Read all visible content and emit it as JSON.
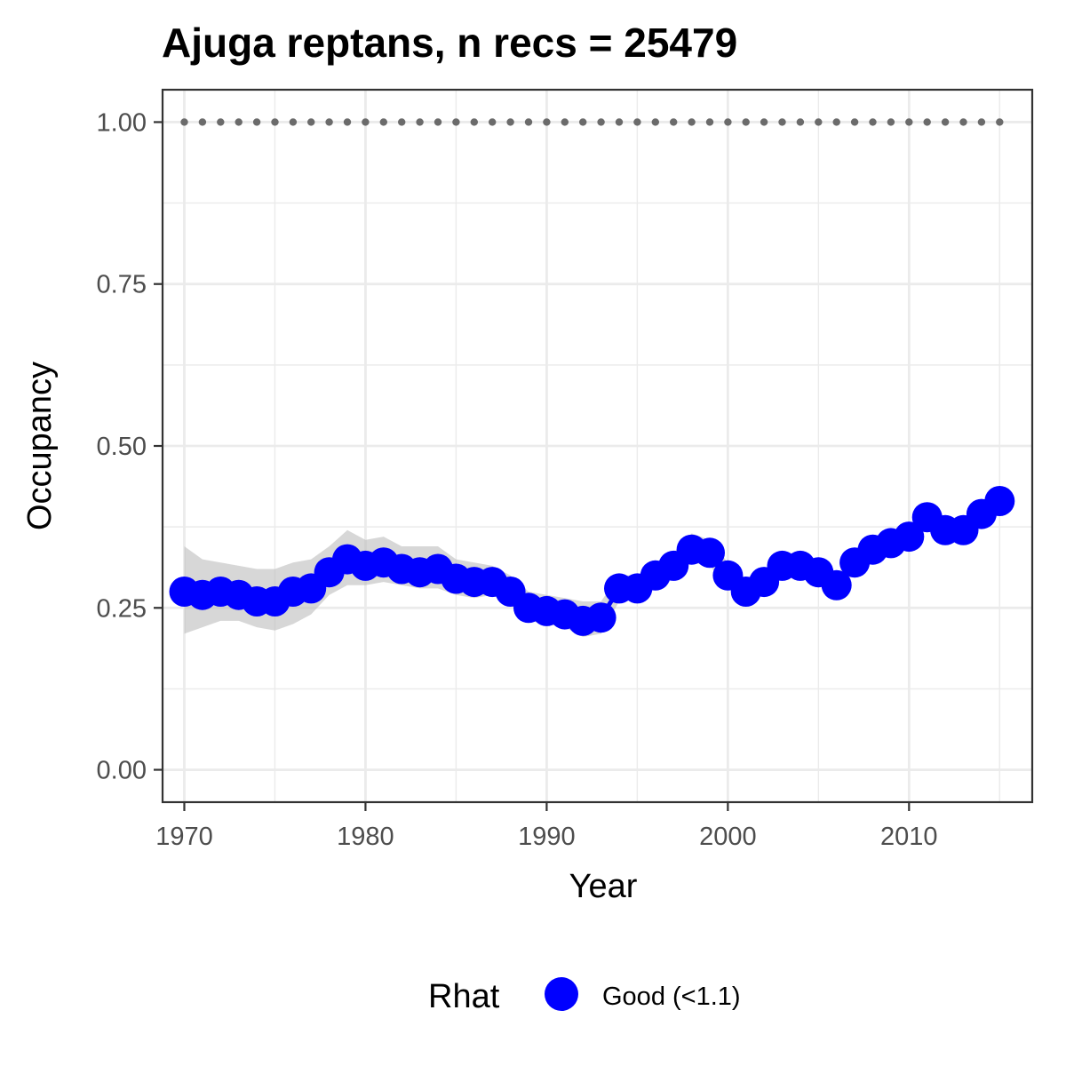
{
  "chart_data": {
    "type": "line",
    "title": "Ajuga reptans, n recs = 25479",
    "xlabel": "Year",
    "ylabel": "Occupancy",
    "xlim": [
      1968.8,
      2016.8
    ],
    "ylim": [
      -0.05,
      1.05
    ],
    "x_ticks": [
      1970,
      1980,
      1990,
      2000,
      2010
    ],
    "x_tick_labels": [
      "1970",
      "1980",
      "1990",
      "2000",
      "2010"
    ],
    "y_ticks": [
      0.0,
      0.25,
      0.5,
      0.75,
      1.0
    ],
    "y_tick_labels": [
      "0.00",
      "0.25",
      "0.50",
      "0.75",
      "1.00"
    ],
    "grid": true,
    "legend": {
      "title": "Rhat",
      "position": "bottom",
      "entries": [
        {
          "label": "Good (<1.1)",
          "color": "#0000ff"
        }
      ]
    },
    "colors": {
      "series": "#0000ff",
      "ribbon": "#bebebe",
      "reference": "#6b6b6b",
      "grid": "#ebebeb",
      "panel_border": "#333333"
    },
    "x": [
      1970,
      1971,
      1972,
      1973,
      1974,
      1975,
      1976,
      1977,
      1978,
      1979,
      1980,
      1981,
      1982,
      1983,
      1984,
      1985,
      1986,
      1987,
      1988,
      1989,
      1990,
      1991,
      1992,
      1993,
      1994,
      1995,
      1996,
      1997,
      1998,
      1999,
      2000,
      2001,
      2002,
      2003,
      2004,
      2005,
      2006,
      2007,
      2008,
      2009,
      2010,
      2011,
      2012,
      2013,
      2014,
      2015
    ],
    "series": [
      {
        "name": "Good (<1.1)",
        "values": [
          0.275,
          0.27,
          0.275,
          0.27,
          0.26,
          0.26,
          0.275,
          0.28,
          0.305,
          0.325,
          0.315,
          0.32,
          0.31,
          0.305,
          0.31,
          0.295,
          0.29,
          0.29,
          0.275,
          0.25,
          0.245,
          0.24,
          0.23,
          0.235,
          0.28,
          0.28,
          0.3,
          0.315,
          0.34,
          0.335,
          0.3,
          0.275,
          0.29,
          0.315,
          0.315,
          0.305,
          0.285,
          0.32,
          0.34,
          0.35,
          0.36,
          0.39,
          0.37,
          0.37,
          0.395,
          0.415
        ],
        "lower": [
          0.21,
          0.22,
          0.23,
          0.23,
          0.22,
          0.215,
          0.225,
          0.24,
          0.27,
          0.285,
          0.285,
          0.29,
          0.285,
          0.28,
          0.28,
          0.27,
          0.265,
          0.27,
          0.255,
          0.23,
          0.225,
          0.22,
          0.205,
          0.21,
          0.26,
          0.265,
          0.285,
          0.3,
          0.32,
          0.315,
          0.28,
          0.26,
          0.275,
          0.3,
          0.3,
          0.29,
          0.27,
          0.305,
          0.325,
          0.335,
          0.345,
          0.375,
          0.355,
          0.355,
          0.38,
          0.4
        ],
        "upper": [
          0.345,
          0.325,
          0.32,
          0.315,
          0.31,
          0.31,
          0.32,
          0.325,
          0.345,
          0.37,
          0.355,
          0.36,
          0.345,
          0.345,
          0.345,
          0.325,
          0.32,
          0.315,
          0.3,
          0.275,
          0.27,
          0.265,
          0.26,
          0.26,
          0.3,
          0.3,
          0.32,
          0.335,
          0.365,
          0.355,
          0.32,
          0.295,
          0.305,
          0.33,
          0.33,
          0.32,
          0.3,
          0.335,
          0.355,
          0.365,
          0.375,
          0.405,
          0.385,
          0.385,
          0.41,
          0.43
        ]
      }
    ],
    "reference_line": {
      "y": 1.0,
      "style": "dotted"
    }
  }
}
